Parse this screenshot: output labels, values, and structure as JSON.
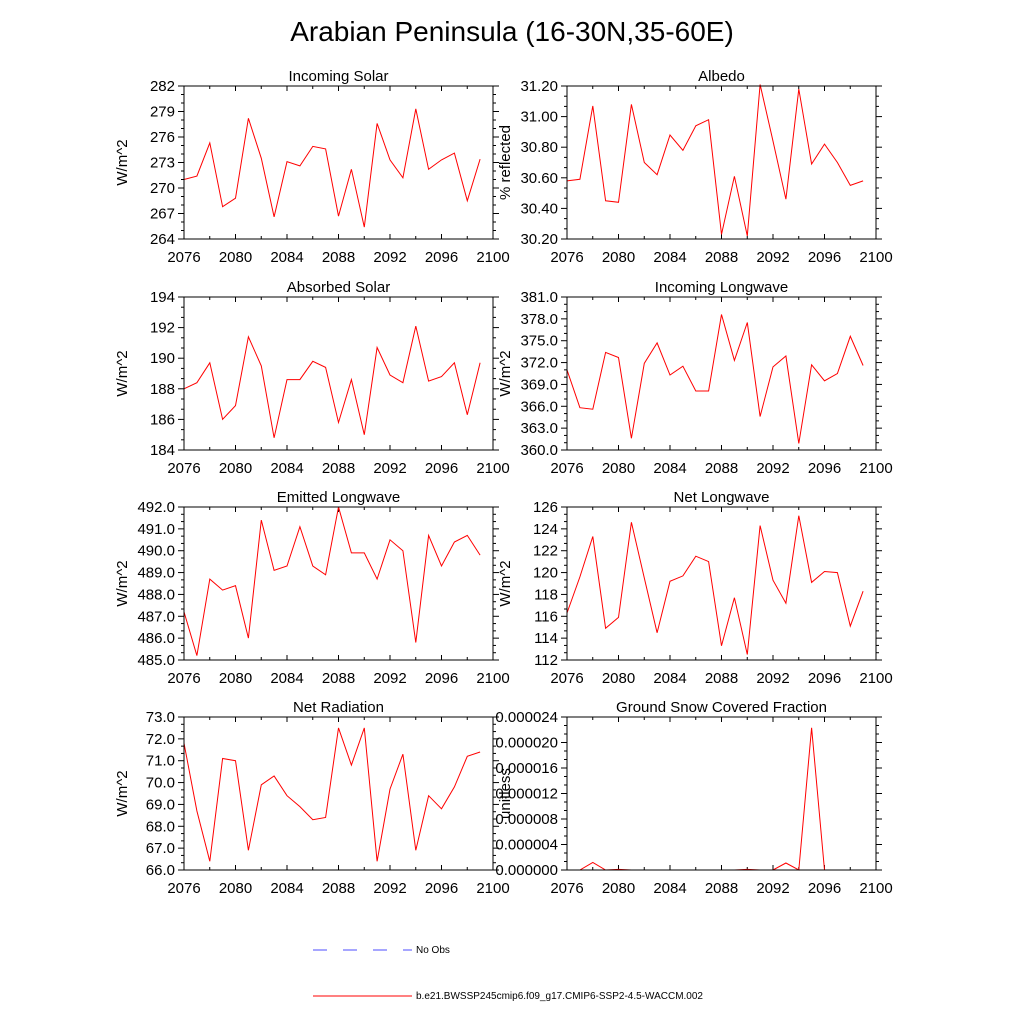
{
  "title": "Arabian Peninsula (16-30N,35-60E)",
  "colors": {
    "model": "#ff0000",
    "obs": "#4c4cff"
  },
  "legend": {
    "obs_label": "No Obs",
    "model_label": "b.e21.BWSSP245cmip6.f09_g17.CMIP6-SSP2-4.5-WACCM.002"
  },
  "chart_data": [
    {
      "type": "line",
      "title": "Incoming Solar",
      "xlabel": "",
      "ylabel": "W/m^2",
      "xlim": [
        2076,
        2100
      ],
      "ylim": [
        264,
        282
      ],
      "xticks": [
        2076,
        2080,
        2084,
        2088,
        2092,
        2096,
        2100
      ],
      "xtick_labels": [
        "2076",
        "2080",
        "2084",
        "2088",
        "2092",
        "2096",
        "2100"
      ],
      "yticks": [
        264,
        267,
        270,
        273,
        276,
        279,
        282
      ],
      "ytick_labels": [
        "264",
        "267",
        "270",
        "273",
        "276",
        "279",
        "282"
      ],
      "x": [
        2076,
        2077,
        2078,
        2079,
        2080,
        2081,
        2082,
        2083,
        2084,
        2085,
        2086,
        2087,
        2088,
        2089,
        2090,
        2091,
        2092,
        2093,
        2094,
        2095,
        2096,
        2097,
        2098,
        2099
      ],
      "series": [
        {
          "name": "b.e21.BWSSP245cmip6.f09_g17.CMIP6-SSP2-4.5-WACCM.002",
          "values": [
            271.0,
            271.4,
            275.3,
            267.8,
            268.8,
            278.2,
            273.5,
            266.6,
            273.1,
            272.6,
            274.9,
            274.6,
            266.7,
            272.2,
            265.4,
            277.6,
            273.3,
            271.2,
            279.3,
            272.2,
            273.3,
            274.1,
            268.5,
            273.4
          ]
        }
      ]
    },
    {
      "type": "line",
      "title": "Albedo",
      "xlabel": "",
      "ylabel": "% reflected",
      "xlim": [
        2076,
        2100
      ],
      "ylim": [
        30.2,
        31.2
      ],
      "xticks": [
        2076,
        2080,
        2084,
        2088,
        2092,
        2096,
        2100
      ],
      "xtick_labels": [
        "2076",
        "2080",
        "2084",
        "2088",
        "2092",
        "2096",
        "2100"
      ],
      "yticks": [
        30.2,
        30.4,
        30.6,
        30.8,
        31.0,
        31.2
      ],
      "ytick_labels": [
        "30.20",
        "30.40",
        "30.60",
        "30.80",
        "31.00",
        "31.20"
      ],
      "x": [
        2076,
        2077,
        2078,
        2079,
        2080,
        2081,
        2082,
        2083,
        2084,
        2085,
        2086,
        2087,
        2088,
        2089,
        2090,
        2091,
        2092,
        2093,
        2094,
        2095,
        2096,
        2097,
        2098,
        2099
      ],
      "series": [
        {
          "name": "b.e21.BWSSP245cmip6.f09_g17.CMIP6-SSP2-4.5-WACCM.002",
          "values": [
            30.58,
            30.59,
            31.07,
            30.45,
            30.44,
            31.08,
            30.7,
            30.62,
            30.88,
            30.78,
            30.94,
            30.98,
            30.23,
            30.61,
            30.22,
            31.21,
            30.84,
            30.46,
            31.18,
            30.69,
            30.82,
            30.7,
            30.55,
            30.58
          ]
        }
      ]
    },
    {
      "type": "line",
      "title": "Absorbed Solar",
      "xlabel": "",
      "ylabel": "W/m^2",
      "xlim": [
        2076,
        2100
      ],
      "ylim": [
        184,
        194
      ],
      "xticks": [
        2076,
        2080,
        2084,
        2088,
        2092,
        2096,
        2100
      ],
      "xtick_labels": [
        "2076",
        "2080",
        "2084",
        "2088",
        "2092",
        "2096",
        "2100"
      ],
      "yticks": [
        184,
        186,
        188,
        190,
        192,
        194
      ],
      "ytick_labels": [
        "184",
        "186",
        "188",
        "190",
        "192",
        "194"
      ],
      "x": [
        2076,
        2077,
        2078,
        2079,
        2080,
        2081,
        2082,
        2083,
        2084,
        2085,
        2086,
        2087,
        2088,
        2089,
        2090,
        2091,
        2092,
        2093,
        2094,
        2095,
        2096,
        2097,
        2098,
        2099
      ],
      "series": [
        {
          "name": "b.e21.BWSSP245cmip6.f09_g17.CMIP6-SSP2-4.5-WACCM.002",
          "values": [
            188.0,
            188.4,
            189.7,
            186.0,
            186.9,
            191.4,
            189.5,
            184.8,
            188.6,
            188.6,
            189.8,
            189.4,
            185.8,
            188.6,
            185.0,
            190.7,
            188.9,
            188.4,
            192.1,
            188.5,
            188.8,
            189.7,
            186.3,
            189.7
          ]
        }
      ]
    },
    {
      "type": "line",
      "title": "Incoming Longwave",
      "xlabel": "",
      "ylabel": "W/m^2",
      "xlim": [
        2076,
        2100
      ],
      "ylim": [
        360,
        381
      ],
      "xticks": [
        2076,
        2080,
        2084,
        2088,
        2092,
        2096,
        2100
      ],
      "xtick_labels": [
        "2076",
        "2080",
        "2084",
        "2088",
        "2092",
        "2096",
        "2100"
      ],
      "yticks": [
        360,
        363,
        366,
        369,
        372,
        375,
        378,
        381
      ],
      "ytick_labels": [
        "360.0",
        "363.0",
        "366.0",
        "369.0",
        "372.0",
        "375.0",
        "378.0",
        "381.0"
      ],
      "x": [
        2076,
        2077,
        2078,
        2079,
        2080,
        2081,
        2082,
        2083,
        2084,
        2085,
        2086,
        2087,
        2088,
        2089,
        2090,
        2091,
        2092,
        2093,
        2094,
        2095,
        2096,
        2097,
        2098,
        2099
      ],
      "series": [
        {
          "name": "b.e21.BWSSP245cmip6.f09_g17.CMIP6-SSP2-4.5-WACCM.002",
          "values": [
            371.0,
            365.8,
            365.6,
            373.4,
            372.7,
            361.6,
            371.9,
            374.7,
            370.3,
            371.5,
            368.1,
            368.1,
            378.6,
            372.3,
            377.5,
            364.6,
            371.4,
            372.9,
            360.9,
            371.7,
            369.5,
            370.5,
            375.6,
            371.6
          ]
        }
      ]
    },
    {
      "type": "line",
      "title": "Emitted Longwave",
      "xlabel": "",
      "ylabel": "W/m^2",
      "xlim": [
        2076,
        2100
      ],
      "ylim": [
        485,
        492
      ],
      "xticks": [
        2076,
        2080,
        2084,
        2088,
        2092,
        2096,
        2100
      ],
      "xtick_labels": [
        "2076",
        "2080",
        "2084",
        "2088",
        "2092",
        "2096",
        "2100"
      ],
      "yticks": [
        485,
        486,
        487,
        488,
        489,
        490,
        491,
        492
      ],
      "ytick_labels": [
        "485.0",
        "486.0",
        "487.0",
        "488.0",
        "489.0",
        "490.0",
        "491.0",
        "492.0"
      ],
      "x": [
        2076,
        2077,
        2078,
        2079,
        2080,
        2081,
        2082,
        2083,
        2084,
        2085,
        2086,
        2087,
        2088,
        2089,
        2090,
        2091,
        2092,
        2093,
        2094,
        2095,
        2096,
        2097,
        2098,
        2099
      ],
      "series": [
        {
          "name": "b.e21.BWSSP245cmip6.f09_g17.CMIP6-SSP2-4.5-WACCM.002",
          "values": [
            487.2,
            485.2,
            488.7,
            488.2,
            488.4,
            486.0,
            491.4,
            489.1,
            489.3,
            491.1,
            489.3,
            488.9,
            492.0,
            489.9,
            489.9,
            488.7,
            490.5,
            490.0,
            485.8,
            490.7,
            489.3,
            490.4,
            490.7,
            489.8
          ]
        }
      ]
    },
    {
      "type": "line",
      "title": "Net Longwave",
      "xlabel": "",
      "ylabel": "W/m^2",
      "xlim": [
        2076,
        2100
      ],
      "ylim": [
        112,
        126
      ],
      "xticks": [
        2076,
        2080,
        2084,
        2088,
        2092,
        2096,
        2100
      ],
      "xtick_labels": [
        "2076",
        "2080",
        "2084",
        "2088",
        "2092",
        "2096",
        "2100"
      ],
      "yticks": [
        112,
        114,
        116,
        118,
        120,
        122,
        124,
        126
      ],
      "ytick_labels": [
        "112",
        "114",
        "116",
        "118",
        "120",
        "122",
        "124",
        "126"
      ],
      "x": [
        2076,
        2077,
        2078,
        2079,
        2080,
        2081,
        2082,
        2083,
        2084,
        2085,
        2086,
        2087,
        2088,
        2089,
        2090,
        2091,
        2092,
        2093,
        2094,
        2095,
        2096,
        2097,
        2098,
        2099
      ],
      "series": [
        {
          "name": "b.e21.BWSSP245cmip6.f09_g17.CMIP6-SSP2-4.5-WACCM.002",
          "values": [
            116.3,
            119.6,
            123.3,
            114.9,
            115.9,
            124.6,
            119.5,
            114.5,
            119.2,
            119.7,
            121.5,
            121.0,
            113.3,
            117.7,
            112.5,
            124.3,
            119.3,
            117.2,
            125.2,
            119.1,
            120.1,
            120.0,
            115.1,
            118.3
          ]
        }
      ]
    },
    {
      "type": "line",
      "title": "Net Radiation",
      "xlabel": "",
      "ylabel": "W/m^2",
      "xlim": [
        2076,
        2100
      ],
      "ylim": [
        66,
        73
      ],
      "xticks": [
        2076,
        2080,
        2084,
        2088,
        2092,
        2096,
        2100
      ],
      "xtick_labels": [
        "2076",
        "2080",
        "2084",
        "2088",
        "2092",
        "2096",
        "2100"
      ],
      "yticks": [
        66,
        67,
        68,
        69,
        70,
        71,
        72,
        73
      ],
      "ytick_labels": [
        "66.0",
        "67.0",
        "68.0",
        "69.0",
        "70.0",
        "71.0",
        "72.0",
        "73.0"
      ],
      "x": [
        2076,
        2077,
        2078,
        2079,
        2080,
        2081,
        2082,
        2083,
        2084,
        2085,
        2086,
        2087,
        2088,
        2089,
        2090,
        2091,
        2092,
        2093,
        2094,
        2095,
        2096,
        2097,
        2098,
        2099
      ],
      "series": [
        {
          "name": "b.e21.BWSSP245cmip6.f09_g17.CMIP6-SSP2-4.5-WACCM.002",
          "values": [
            71.8,
            68.7,
            66.4,
            71.1,
            71.0,
            66.9,
            69.9,
            70.3,
            69.4,
            68.9,
            68.3,
            68.4,
            72.5,
            70.8,
            72.5,
            66.4,
            69.7,
            71.3,
            66.9,
            69.4,
            68.8,
            69.8,
            71.2,
            71.4
          ]
        }
      ]
    },
    {
      "type": "line",
      "title": "Ground Snow Covered Fraction",
      "xlabel": "",
      "ylabel": "unitless",
      "xlim": [
        2076,
        2100
      ],
      "ylim": [
        0,
        2.4e-05
      ],
      "xticks": [
        2076,
        2080,
        2084,
        2088,
        2092,
        2096,
        2100
      ],
      "xtick_labels": [
        "2076",
        "2080",
        "2084",
        "2088",
        "2092",
        "2096",
        "2100"
      ],
      "yticks": [
        0,
        4e-06,
        8e-06,
        1.2e-05,
        1.6e-05,
        2e-05,
        2.4e-05
      ],
      "ytick_labels": [
        "0.000000",
        "0.000004",
        "0.000008",
        "0.000012",
        "0.000016",
        "0.000020",
        "0.000024"
      ],
      "x": [
        2076,
        2077,
        2078,
        2079,
        2080,
        2081,
        2082,
        2083,
        2084,
        2085,
        2086,
        2087,
        2088,
        2089,
        2090,
        2091,
        2092,
        2093,
        2094,
        2095,
        2096,
        2097,
        2098,
        2099
      ],
      "series": [
        {
          "name": "b.e21.BWSSP245cmip6.f09_g17.CMIP6-SSP2-4.5-WACCM.002",
          "values": [
            0,
            0,
            1.2e-06,
            0,
            1e-07,
            0,
            0,
            0,
            0,
            0,
            0,
            0,
            0,
            0,
            1e-07,
            0,
            0,
            1.1e-06,
            0,
            2.23e-05,
            0,
            0,
            0,
            0
          ]
        }
      ]
    }
  ]
}
